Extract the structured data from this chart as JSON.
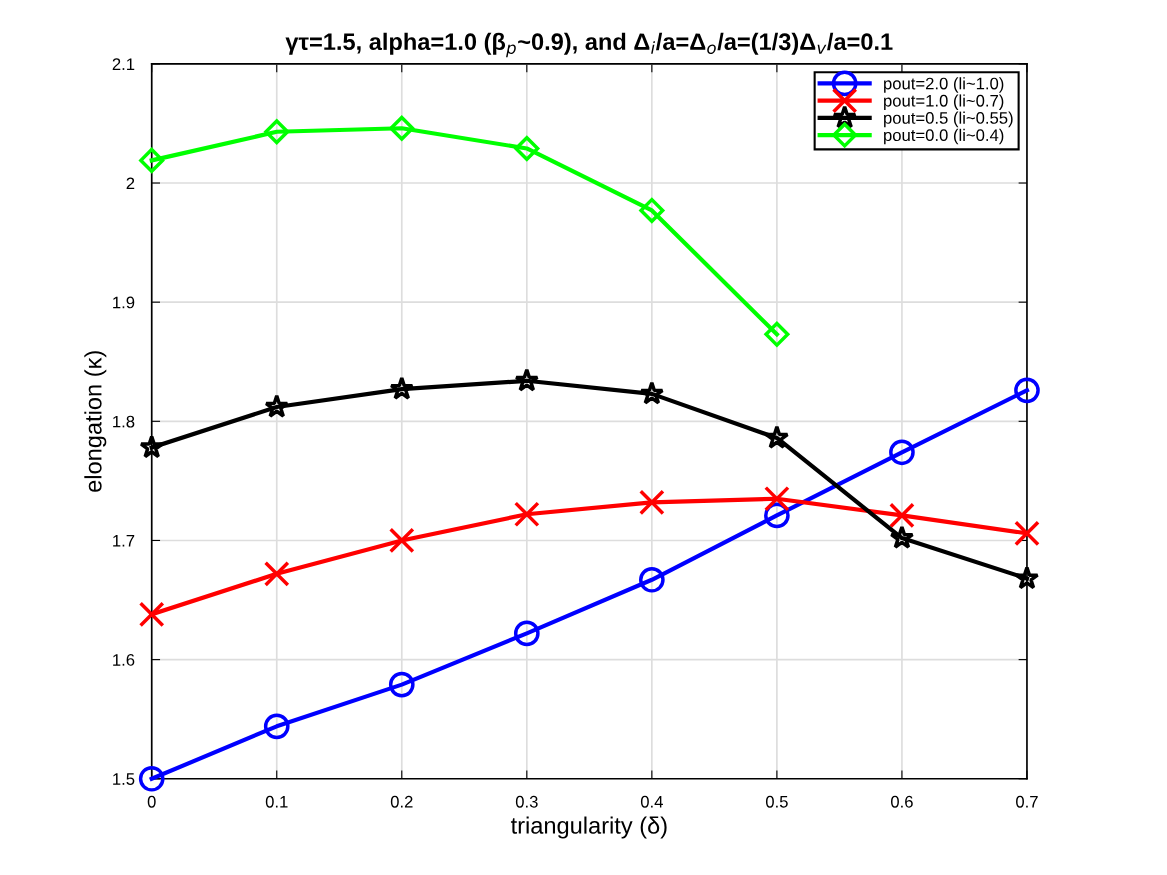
{
  "chart_data": {
    "type": "line",
    "title": "γτ=1.5, alpha=1.0 (β$_{p}$~0.9), and Δ$_{i}$/a=Δ$_{o}$/a=(1/3)Δ$_{v}$/a=0.1",
    "xlabel": "triangularity (δ)",
    "ylabel": "elongation (κ)",
    "x": [
      0,
      0.1,
      0.2,
      0.3,
      0.4,
      0.5,
      0.6,
      0.7
    ],
    "series": [
      {
        "name": "pout=2.0 (li~1.0)",
        "color": "#0000ff",
        "marker": "circle",
        "values": [
          1.5,
          1.544,
          1.579,
          1.622,
          1.667,
          1.721,
          1.774,
          1.826
        ]
      },
      {
        "name": "pout=1.0 (li~0.7)",
        "color": "#ff0000",
        "marker": "cross",
        "values": [
          1.638,
          1.672,
          1.7,
          1.722,
          1.732,
          1.735,
          1.721,
          1.706
        ]
      },
      {
        "name": "pout=0.5 (li~0.55)",
        "color": "#000000",
        "marker": "star",
        "values": [
          1.778,
          1.812,
          1.827,
          1.834,
          1.823,
          1.786,
          1.702,
          1.668
        ]
      },
      {
        "name": "pout=0.0 (li~0.4)",
        "color": "#00ff00",
        "marker": "diamond",
        "values": [
          2.019,
          2.043,
          2.046,
          2.029,
          1.977,
          1.873,
          null,
          null
        ]
      }
    ],
    "xlim": [
      0,
      0.7
    ],
    "xticks": [
      0,
      0.1,
      0.2,
      0.3,
      0.4,
      0.5,
      0.6,
      0.7
    ],
    "ylim": [
      1.5,
      2.1
    ],
    "yticks": [
      1.5,
      1.6,
      1.7,
      1.8,
      1.9,
      2,
      2.1
    ],
    "grid": true,
    "legend": "top right",
    "line_style": "solid"
  }
}
